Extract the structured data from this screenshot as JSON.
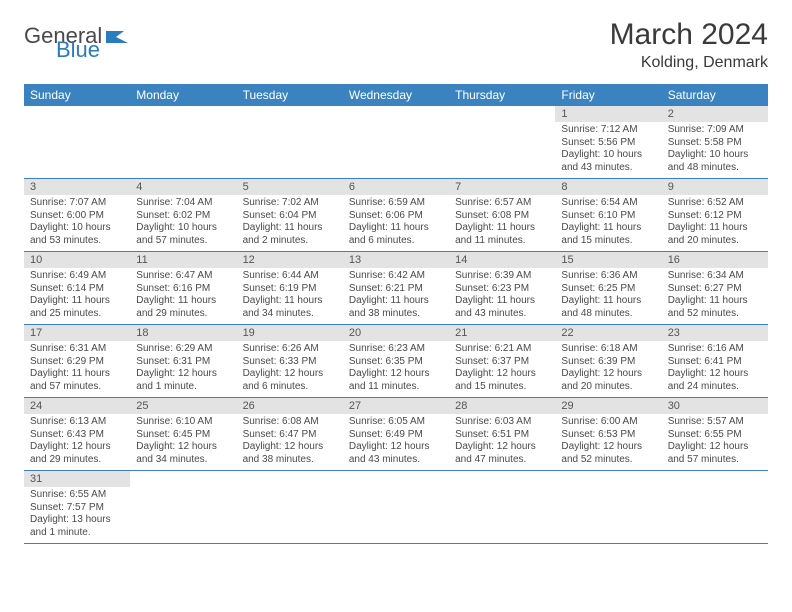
{
  "logo": {
    "general": "General",
    "blue": "Blue"
  },
  "title": "March 2024",
  "location": "Kolding, Denmark",
  "colors": {
    "header_bg": "#3b83c0",
    "header_text": "#ffffff",
    "daynum_bg": "#e3e3e3",
    "border": "#3b83c0",
    "text": "#4a4a4a",
    "logo_blue": "#2b7bbf"
  },
  "weekdays": [
    "Sunday",
    "Monday",
    "Tuesday",
    "Wednesday",
    "Thursday",
    "Friday",
    "Saturday"
  ],
  "weeks": [
    [
      null,
      null,
      null,
      null,
      null,
      {
        "n": "1",
        "sr": "Sunrise: 7:12 AM",
        "ss": "Sunset: 5:56 PM",
        "dl1": "Daylight: 10 hours",
        "dl2": "and 43 minutes."
      },
      {
        "n": "2",
        "sr": "Sunrise: 7:09 AM",
        "ss": "Sunset: 5:58 PM",
        "dl1": "Daylight: 10 hours",
        "dl2": "and 48 minutes."
      }
    ],
    [
      {
        "n": "3",
        "sr": "Sunrise: 7:07 AM",
        "ss": "Sunset: 6:00 PM",
        "dl1": "Daylight: 10 hours",
        "dl2": "and 53 minutes."
      },
      {
        "n": "4",
        "sr": "Sunrise: 7:04 AM",
        "ss": "Sunset: 6:02 PM",
        "dl1": "Daylight: 10 hours",
        "dl2": "and 57 minutes."
      },
      {
        "n": "5",
        "sr": "Sunrise: 7:02 AM",
        "ss": "Sunset: 6:04 PM",
        "dl1": "Daylight: 11 hours",
        "dl2": "and 2 minutes."
      },
      {
        "n": "6",
        "sr": "Sunrise: 6:59 AM",
        "ss": "Sunset: 6:06 PM",
        "dl1": "Daylight: 11 hours",
        "dl2": "and 6 minutes."
      },
      {
        "n": "7",
        "sr": "Sunrise: 6:57 AM",
        "ss": "Sunset: 6:08 PM",
        "dl1": "Daylight: 11 hours",
        "dl2": "and 11 minutes."
      },
      {
        "n": "8",
        "sr": "Sunrise: 6:54 AM",
        "ss": "Sunset: 6:10 PM",
        "dl1": "Daylight: 11 hours",
        "dl2": "and 15 minutes."
      },
      {
        "n": "9",
        "sr": "Sunrise: 6:52 AM",
        "ss": "Sunset: 6:12 PM",
        "dl1": "Daylight: 11 hours",
        "dl2": "and 20 minutes."
      }
    ],
    [
      {
        "n": "10",
        "sr": "Sunrise: 6:49 AM",
        "ss": "Sunset: 6:14 PM",
        "dl1": "Daylight: 11 hours",
        "dl2": "and 25 minutes."
      },
      {
        "n": "11",
        "sr": "Sunrise: 6:47 AM",
        "ss": "Sunset: 6:16 PM",
        "dl1": "Daylight: 11 hours",
        "dl2": "and 29 minutes."
      },
      {
        "n": "12",
        "sr": "Sunrise: 6:44 AM",
        "ss": "Sunset: 6:19 PM",
        "dl1": "Daylight: 11 hours",
        "dl2": "and 34 minutes."
      },
      {
        "n": "13",
        "sr": "Sunrise: 6:42 AM",
        "ss": "Sunset: 6:21 PM",
        "dl1": "Daylight: 11 hours",
        "dl2": "and 38 minutes."
      },
      {
        "n": "14",
        "sr": "Sunrise: 6:39 AM",
        "ss": "Sunset: 6:23 PM",
        "dl1": "Daylight: 11 hours",
        "dl2": "and 43 minutes."
      },
      {
        "n": "15",
        "sr": "Sunrise: 6:36 AM",
        "ss": "Sunset: 6:25 PM",
        "dl1": "Daylight: 11 hours",
        "dl2": "and 48 minutes."
      },
      {
        "n": "16",
        "sr": "Sunrise: 6:34 AM",
        "ss": "Sunset: 6:27 PM",
        "dl1": "Daylight: 11 hours",
        "dl2": "and 52 minutes."
      }
    ],
    [
      {
        "n": "17",
        "sr": "Sunrise: 6:31 AM",
        "ss": "Sunset: 6:29 PM",
        "dl1": "Daylight: 11 hours",
        "dl2": "and 57 minutes."
      },
      {
        "n": "18",
        "sr": "Sunrise: 6:29 AM",
        "ss": "Sunset: 6:31 PM",
        "dl1": "Daylight: 12 hours",
        "dl2": "and 1 minute."
      },
      {
        "n": "19",
        "sr": "Sunrise: 6:26 AM",
        "ss": "Sunset: 6:33 PM",
        "dl1": "Daylight: 12 hours",
        "dl2": "and 6 minutes."
      },
      {
        "n": "20",
        "sr": "Sunrise: 6:23 AM",
        "ss": "Sunset: 6:35 PM",
        "dl1": "Daylight: 12 hours",
        "dl2": "and 11 minutes."
      },
      {
        "n": "21",
        "sr": "Sunrise: 6:21 AM",
        "ss": "Sunset: 6:37 PM",
        "dl1": "Daylight: 12 hours",
        "dl2": "and 15 minutes."
      },
      {
        "n": "22",
        "sr": "Sunrise: 6:18 AM",
        "ss": "Sunset: 6:39 PM",
        "dl1": "Daylight: 12 hours",
        "dl2": "and 20 minutes."
      },
      {
        "n": "23",
        "sr": "Sunrise: 6:16 AM",
        "ss": "Sunset: 6:41 PM",
        "dl1": "Daylight: 12 hours",
        "dl2": "and 24 minutes."
      }
    ],
    [
      {
        "n": "24",
        "sr": "Sunrise: 6:13 AM",
        "ss": "Sunset: 6:43 PM",
        "dl1": "Daylight: 12 hours",
        "dl2": "and 29 minutes."
      },
      {
        "n": "25",
        "sr": "Sunrise: 6:10 AM",
        "ss": "Sunset: 6:45 PM",
        "dl1": "Daylight: 12 hours",
        "dl2": "and 34 minutes."
      },
      {
        "n": "26",
        "sr": "Sunrise: 6:08 AM",
        "ss": "Sunset: 6:47 PM",
        "dl1": "Daylight: 12 hours",
        "dl2": "and 38 minutes."
      },
      {
        "n": "27",
        "sr": "Sunrise: 6:05 AM",
        "ss": "Sunset: 6:49 PM",
        "dl1": "Daylight: 12 hours",
        "dl2": "and 43 minutes."
      },
      {
        "n": "28",
        "sr": "Sunrise: 6:03 AM",
        "ss": "Sunset: 6:51 PM",
        "dl1": "Daylight: 12 hours",
        "dl2": "and 47 minutes."
      },
      {
        "n": "29",
        "sr": "Sunrise: 6:00 AM",
        "ss": "Sunset: 6:53 PM",
        "dl1": "Daylight: 12 hours",
        "dl2": "and 52 minutes."
      },
      {
        "n": "30",
        "sr": "Sunrise: 5:57 AM",
        "ss": "Sunset: 6:55 PM",
        "dl1": "Daylight: 12 hours",
        "dl2": "and 57 minutes."
      }
    ],
    [
      {
        "n": "31",
        "sr": "Sunrise: 6:55 AM",
        "ss": "Sunset: 7:57 PM",
        "dl1": "Daylight: 13 hours",
        "dl2": "and 1 minute."
      },
      null,
      null,
      null,
      null,
      null,
      null
    ]
  ]
}
